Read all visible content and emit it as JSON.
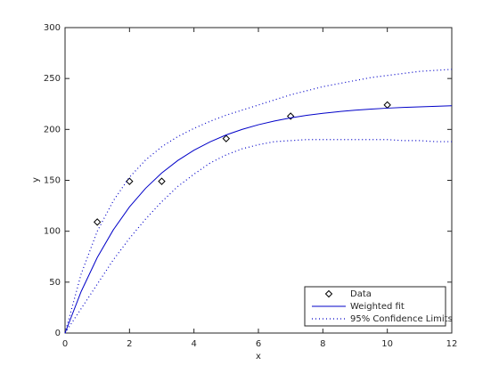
{
  "chart_data": {
    "type": "line",
    "xlabel": "x",
    "ylabel": "y",
    "xlim": [
      0,
      12
    ],
    "xticks": [
      0,
      2,
      4,
      6,
      8,
      10,
      12
    ],
    "ylim": [
      0,
      300
    ],
    "yticks": [
      0,
      50,
      100,
      150,
      200,
      250,
      300
    ],
    "legend": "lower right",
    "series": [
      {
        "name": "Data",
        "style": "marker",
        "color": "#000000",
        "x": [
          1,
          2,
          3,
          5,
          7,
          10
        ],
        "values": [
          109,
          149,
          149,
          191,
          213,
          224
        ]
      },
      {
        "name": "Weighted fit",
        "style": "solid",
        "color": "#0000c8",
        "x": [
          0,
          0.5,
          1,
          1.5,
          2,
          2.5,
          3,
          3.5,
          4,
          4.5,
          5,
          5.5,
          6,
          6.5,
          7,
          7.5,
          8,
          8.5,
          9,
          9.5,
          10,
          10.5,
          11,
          11.5,
          12
        ],
        "values": [
          0,
          40.8,
          74.2,
          101.5,
          123.9,
          142.2,
          157.2,
          169.5,
          179.6,
          187.8,
          194.6,
          200.1,
          204.6,
          208.3,
          211.3,
          213.8,
          215.8,
          217.5,
          218.9,
          220.0,
          220.9,
          221.6,
          222.2,
          222.7,
          223.2
        ]
      },
      {
        "name": "95% Confidence Limits",
        "style": "dotted",
        "color": "#0000c8",
        "x": [
          0,
          0.5,
          1,
          1.5,
          2,
          2.5,
          3,
          3.5,
          4,
          4.5,
          5,
          5.5,
          6,
          6.5,
          7,
          7.5,
          8,
          8.5,
          9,
          9.5,
          10,
          10.5,
          11,
          11.5,
          12
        ],
        "values": [
          0,
          58,
          100,
          130,
          153,
          170,
          183,
          193,
          201,
          208,
          214,
          219,
          224,
          229,
          234,
          238,
          242,
          245,
          248,
          251,
          253,
          255,
          257,
          258,
          259
        ]
      },
      {
        "style": "dotted",
        "color": "#0000c8",
        "x": [
          0,
          0.5,
          1,
          1.5,
          2,
          2.5,
          3,
          3.5,
          4,
          4.5,
          5,
          5.5,
          6,
          6.5,
          7,
          7.5,
          8,
          8.5,
          9,
          9.5,
          10,
          10.5,
          11,
          11.5,
          12
        ],
        "values": [
          0,
          24,
          48,
          72,
          93,
          112,
          129,
          144,
          156,
          167,
          175,
          181,
          185,
          188,
          189,
          190,
          190,
          190,
          190,
          190,
          190,
          189,
          189,
          188,
          188
        ]
      }
    ]
  }
}
